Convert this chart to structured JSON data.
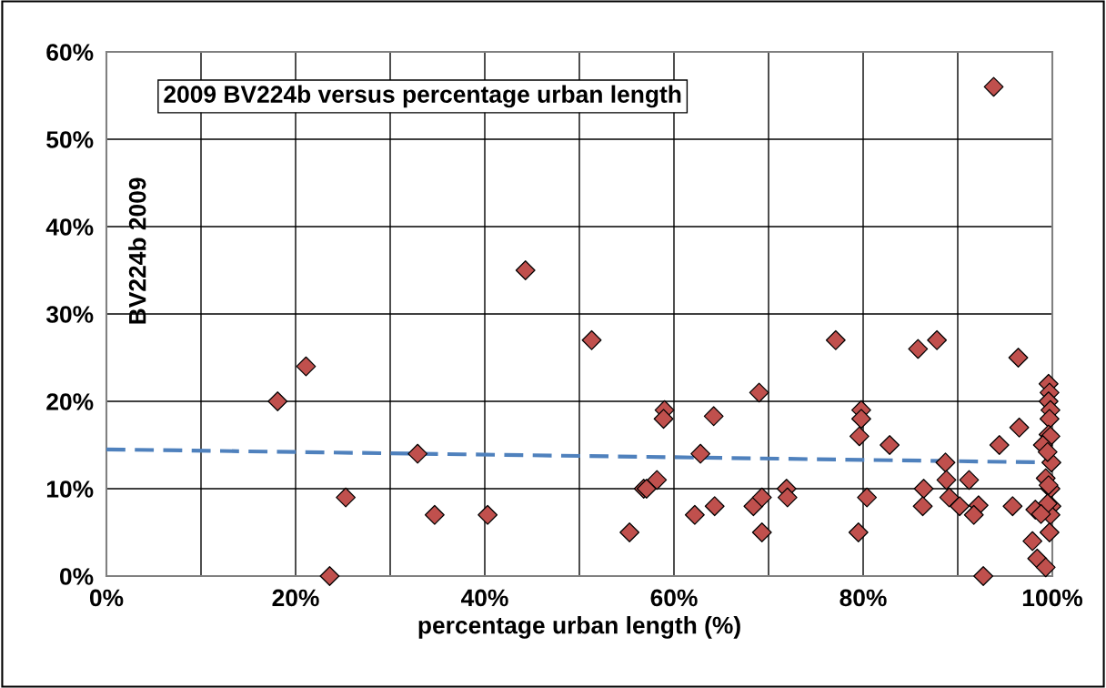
{
  "chart_data": {
    "type": "scatter",
    "title": "2009 BV224b versus percentage urban length",
    "xlabel": "percentage urban length (%)",
    "ylabel": "BV224b 2009",
    "xlim": [
      0,
      100
    ],
    "ylim": [
      0,
      60
    ],
    "xticks": [
      {
        "value": 0,
        "label": "0%"
      },
      {
        "value": 20,
        "label": "20%"
      },
      {
        "value": 40,
        "label": "40%"
      },
      {
        "value": 60,
        "label": "60%"
      },
      {
        "value": 80,
        "label": "80%"
      },
      {
        "value": 100,
        "label": "100%"
      }
    ],
    "yticks": [
      {
        "value": 0,
        "label": "0%"
      },
      {
        "value": 10,
        "label": "10%"
      },
      {
        "value": 20,
        "label": "20%"
      },
      {
        "value": 30,
        "label": "30%"
      },
      {
        "value": 40,
        "label": "40%"
      },
      {
        "value": 50,
        "label": "50%"
      },
      {
        "value": 60,
        "label": "60%"
      }
    ],
    "grid": true,
    "series": [
      {
        "marker": "diamond",
        "color": "#c0504d",
        "x": [
          18.1,
          21.1,
          23.6,
          25.3,
          32.9,
          34.7,
          40.3,
          44.3,
          51.3,
          55.3,
          56.8,
          57.1,
          58.2,
          59.0,
          58.9,
          62.2,
          62.8,
          64.3,
          64.2,
          68.4,
          69.3,
          69.3,
          69.0,
          71.9,
          72.0,
          77.1,
          85.8,
          87.8,
          96.4,
          99.6,
          99.7,
          99.6,
          99.8,
          99.7,
          99.6,
          99.8,
          99.9,
          99.8,
          99.9,
          99.8,
          99.7,
          99.0,
          99.5,
          99.3,
          99.6,
          99.5,
          98.2,
          98.8,
          97.9,
          98.4,
          99.3,
          79.8,
          79.8,
          79.6,
          82.8,
          80.4,
          79.5,
          88.7,
          88.8,
          86.4,
          86.3,
          89.1,
          90.2,
          91.2,
          92.2,
          91.7,
          92.7,
          94.4,
          96.5,
          95.8,
          93.8
        ],
        "values": [
          20,
          24,
          0,
          9,
          14,
          7,
          7,
          35,
          27,
          5,
          10,
          10,
          11,
          19,
          18,
          7,
          14,
          8,
          18.3,
          8,
          9,
          5,
          21,
          10,
          9,
          27,
          26,
          27,
          25,
          22,
          21,
          20,
          19,
          18,
          16.2,
          16,
          13,
          10,
          8,
          7,
          5,
          15,
          14.2,
          11.2,
          10.4,
          8.3,
          7.6,
          7.1,
          4,
          2,
          1,
          19,
          18,
          16,
          15,
          9,
          5,
          13,
          11,
          10,
          8,
          9,
          8,
          11,
          8.1,
          7,
          0,
          15,
          17,
          8,
          56
        ]
      },
      {
        "type": "line",
        "color": "#4f81bd",
        "line_style": "dashed",
        "x": [
          0,
          100
        ],
        "values": [
          14.5,
          13.0
        ]
      }
    ]
  }
}
